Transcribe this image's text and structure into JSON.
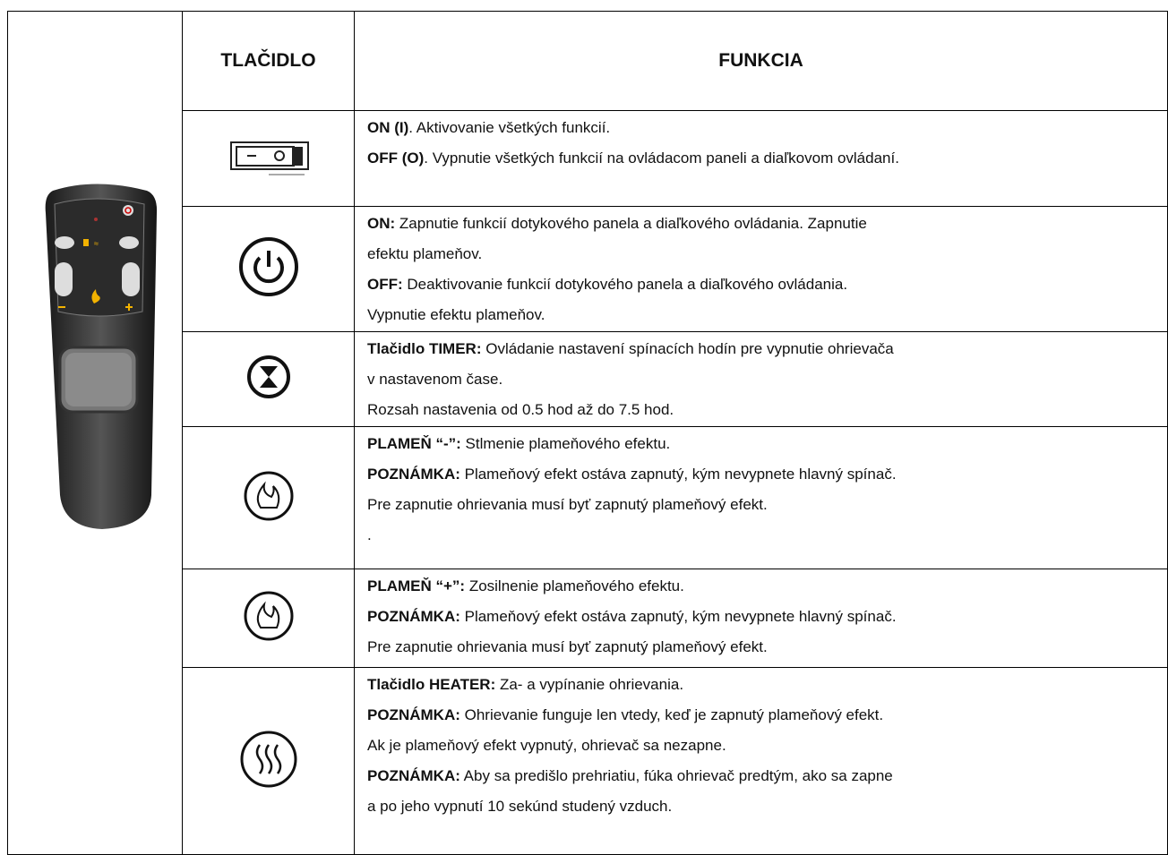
{
  "table": {
    "headers": [
      "TLAČIDLO",
      "FUNKCIA"
    ],
    "rows": [
      {
        "lines": [
          {
            "bold": "ON (I)",
            "text": ". Aktivovanie všetkých funkcií."
          },
          {
            "bold": "OFF (O)",
            "text": ". Vypnutie všetkých funkcií na ovládacom paneli a diaľkovom ovládaní."
          }
        ]
      },
      {
        "lines": [
          {
            "bold": "ON:",
            "text": " Zapnutie funkcií dotykového panela a diaľkového ovládania. Zapnutie"
          },
          {
            "text": "efektu plameňov."
          },
          {
            "bold": "OFF:",
            "text": " Deaktivovanie funkcií dotykového panela a diaľkového ovládania."
          },
          {
            "text": "Vypnutie efektu plameňov."
          }
        ]
      },
      {
        "lines": [
          {
            "bold": "Tlačidlo TIMER:",
            "text": " Ovládanie nastavení spínacích hodín pre vypnutie ohrievača"
          },
          {
            "text": "v nastavenom čase."
          },
          {
            "text": "Rozsah nastavenia od 0.5 hod až do 7.5 hod."
          }
        ]
      },
      {
        "lines": [
          {
            "bold": "PLAMEŇ “-”:",
            "text": " Stlmenie plameňového efektu."
          },
          {
            "bold": "POZNÁMKA:",
            "text": " Plameňový efekt ostáva zapnutý, kým nevypnete hlavný spínač."
          },
          {
            "text": "Pre zapnutie ohrievania musí byť zapnutý plameňový efekt."
          },
          {
            "text": "."
          }
        ]
      },
      {
        "lines": [
          {
            "bold": "PLAMEŇ “+”:",
            "text": " Zosilnenie plameňového efektu."
          },
          {
            "bold": "POZNÁMKA:",
            "text": " Plameňový efekt ostáva zapnutý, kým nevypnete hlavný spínač."
          },
          {
            "text": "Pre zapnutie ohrievania musí byť zapnutý plameňový efekt."
          }
        ]
      },
      {
        "lines": [
          {
            "bold": "Tlačidlo HEATER:",
            "text": " Za- a vypínanie ohrievania."
          },
          {
            "bold": "POZNÁMKA:",
            "text": " Ohrievanie funguje len vtedy, keď je zapnutý plameňový efekt."
          },
          {
            "text": "Ak je plameňový efekt vypnutý, ohrievač sa nezapne."
          },
          {
            "bold": "POZNÁMKA:",
            "text": " Aby sa predišlo prehriatiu, fúka ohrievač predtým, ako sa zapne"
          },
          {
            "text": "a po jeho vypnutí 10 sekúnd studený vzduch."
          }
        ]
      }
    ]
  }
}
